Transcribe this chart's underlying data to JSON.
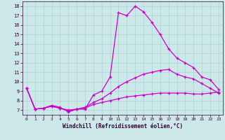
{
  "xlabel": "Windchill (Refroidissement éolien,°C)",
  "background_color": "#cce8e8",
  "line_color": "#cc00cc",
  "xlim": [
    -0.5,
    23.5
  ],
  "ylim": [
    6.5,
    18.5
  ],
  "xticks": [
    0,
    1,
    2,
    3,
    4,
    5,
    6,
    7,
    8,
    9,
    10,
    11,
    12,
    13,
    14,
    15,
    16,
    17,
    18,
    19,
    20,
    21,
    22,
    23
  ],
  "yticks": [
    7,
    8,
    9,
    10,
    11,
    12,
    13,
    14,
    15,
    16,
    17,
    18
  ],
  "grid_color": "#aad4d4",
  "series": [
    {
      "x": [
        0,
        1,
        2,
        3,
        4,
        5,
        6,
        7,
        8,
        9,
        10,
        11,
        12,
        13,
        14,
        15,
        16,
        17,
        18,
        19,
        20,
        21,
        22,
        23
      ],
      "y": [
        9.3,
        7.1,
        7.2,
        7.5,
        7.3,
        6.8,
        7.1,
        7.1,
        8.6,
        9.0,
        10.5,
        17.3,
        17.0,
        18.0,
        17.4,
        16.3,
        15.0,
        13.5,
        12.5,
        12.0,
        11.5,
        10.5,
        10.2,
        9.2
      ]
    },
    {
      "x": [
        0,
        1,
        2,
        3,
        4,
        5,
        6,
        7,
        8,
        9,
        10,
        11,
        12,
        13,
        14,
        15,
        16,
        17,
        18,
        19,
        20,
        21,
        22,
        23
      ],
      "y": [
        9.3,
        7.1,
        7.2,
        7.4,
        7.2,
        6.9,
        7.1,
        7.3,
        7.8,
        8.2,
        8.8,
        9.5,
        10.0,
        10.4,
        10.8,
        11.0,
        11.2,
        11.3,
        10.8,
        10.5,
        10.3,
        9.8,
        9.3,
        8.8
      ]
    },
    {
      "x": [
        0,
        1,
        2,
        3,
        4,
        5,
        6,
        7,
        8,
        9,
        10,
        11,
        12,
        13,
        14,
        15,
        16,
        17,
        18,
        19,
        20,
        21,
        22,
        23
      ],
      "y": [
        9.3,
        7.1,
        7.2,
        7.4,
        7.2,
        7.0,
        7.1,
        7.2,
        7.6,
        7.8,
        8.0,
        8.2,
        8.4,
        8.5,
        8.6,
        8.7,
        8.8,
        8.8,
        8.8,
        8.8,
        8.7,
        8.7,
        8.8,
        8.9
      ]
    }
  ]
}
